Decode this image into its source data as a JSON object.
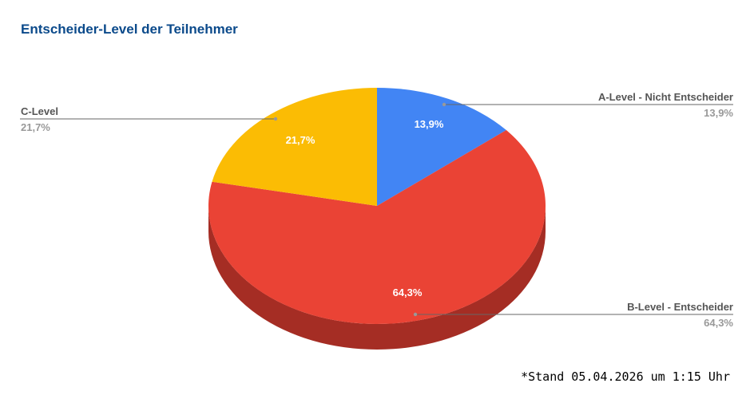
{
  "chart_data": {
    "type": "pie",
    "style": "3d",
    "title": "Entscheider-Level der Teilnehmer",
    "start_angle": "top, clockwise",
    "slices": [
      {
        "label": "A-Level - Nicht Entscheider",
        "value": 13.9,
        "display": "13,9%",
        "color": "#4285f4",
        "side_color": "#2a5db0"
      },
      {
        "label": "B-Level - Entscheider",
        "value": 64.3,
        "display": "64,3%",
        "color": "#ea4335",
        "side_color": "#a52d24"
      },
      {
        "label": "C-Level",
        "value": 21.7,
        "display": "21,7%",
        "color": "#fbbc04",
        "side_color": "#b08404"
      }
    ],
    "legend": "labeled leader lines"
  },
  "footnote": "*Stand 05.04.2026 um 1:15 Uhr"
}
